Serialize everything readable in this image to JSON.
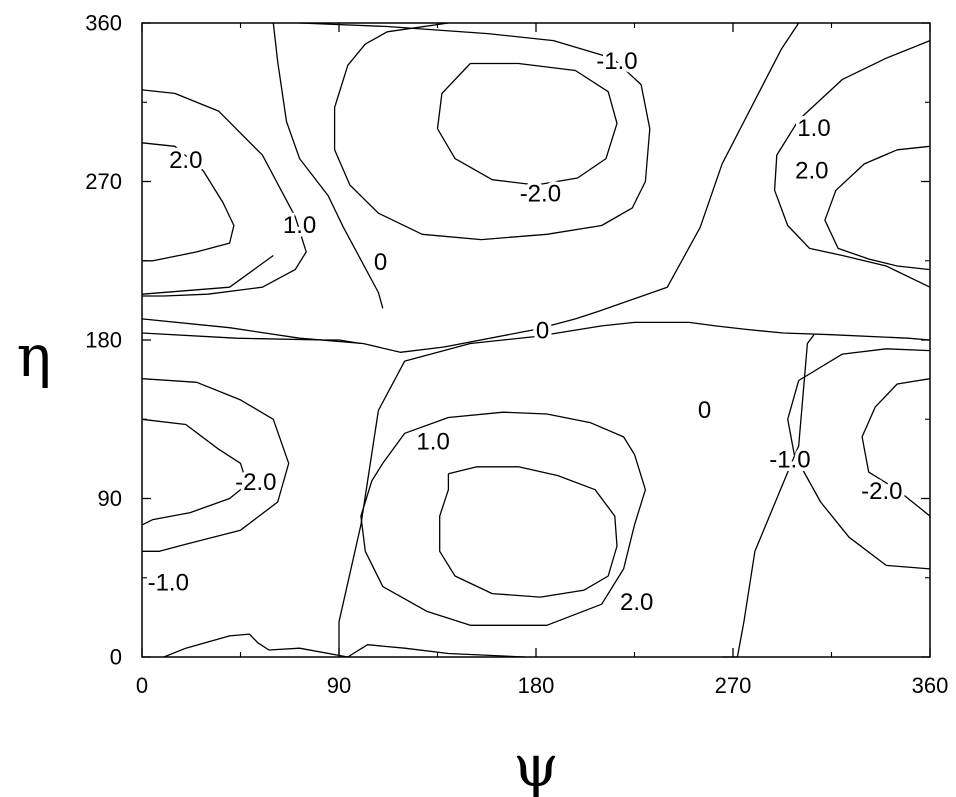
{
  "chart_data": {
    "type": "contour",
    "title": "",
    "xlabel": "ψ",
    "ylabel": "η",
    "xlim": [
      0,
      360
    ],
    "ylim": [
      0,
      360
    ],
    "xticks": [
      0,
      90,
      180,
      270,
      360
    ],
    "yticks": [
      0,
      90,
      180,
      270,
      360
    ],
    "grid": false,
    "legend": "none",
    "line_color": "#000000",
    "contours": [
      {
        "level": "-1.0",
        "points": [
          [
            72,
            360
          ],
          [
            112,
            358
          ],
          [
            158,
            354
          ],
          [
            188,
            350
          ],
          [
            215,
            340
          ],
          [
            228,
            325
          ],
          [
            232,
            300
          ],
          [
            230,
            270
          ],
          [
            224,
            255
          ],
          [
            210,
            245
          ],
          [
            185,
            240
          ],
          [
            155,
            237
          ],
          [
            128,
            240
          ],
          [
            108,
            252
          ],
          [
            95,
            268
          ],
          [
            88,
            288
          ],
          [
            88,
            312
          ],
          [
            94,
            336
          ],
          [
            102,
            348
          ],
          [
            112,
            355
          ],
          [
            140,
            360
          ]
        ]
      },
      {
        "level": "-2.0",
        "points": [
          [
            150,
            337
          ],
          [
            172,
            337
          ],
          [
            198,
            333
          ],
          [
            213,
            321
          ],
          [
            217,
            303
          ],
          [
            212,
            283
          ],
          [
            199,
            272
          ],
          [
            180,
            268
          ],
          [
            160,
            271
          ],
          [
            143,
            283
          ],
          [
            135,
            300
          ],
          [
            137,
            320
          ],
          [
            150,
            337
          ]
        ]
      },
      {
        "level": "0",
        "points": [
          [
            60,
            360
          ],
          [
            62,
            338
          ],
          [
            66,
            304
          ],
          [
            72,
            283
          ],
          [
            85,
            262
          ],
          [
            92,
            244
          ],
          [
            108,
            207
          ],
          [
            110,
            198
          ]
        ]
      },
      {
        "level": "0",
        "points": [
          [
            0,
            192
          ],
          [
            40,
            187
          ],
          [
            72,
            181
          ],
          [
            101,
            178
          ],
          [
            118,
            173
          ],
          [
            138,
            176
          ],
          [
            180,
            186
          ],
          [
            198,
            192
          ],
          [
            208,
            196
          ],
          [
            240,
            210
          ],
          [
            255,
            244
          ],
          [
            265,
            280
          ],
          [
            292,
            345
          ],
          [
            300,
            360
          ]
        ]
      },
      {
        "level": "0",
        "points": [
          [
            0,
            184
          ],
          [
            43,
            181
          ],
          [
            83,
            180
          ],
          [
            90,
            180
          ],
          [
            100,
            178
          ]
        ]
      },
      {
        "level": "0",
        "points": [
          [
            0,
            206
          ],
          [
            40,
            210
          ],
          [
            60,
            228
          ]
        ]
      },
      {
        "level": "0",
        "points": [
          [
            90,
            0
          ],
          [
            90,
            20
          ],
          [
            100,
            75
          ],
          [
            108,
            140
          ],
          [
            120,
            168
          ],
          [
            150,
            178
          ],
          [
            180,
            182
          ],
          [
            210,
            188
          ],
          [
            225,
            190
          ],
          [
            250,
            190
          ]
        ]
      },
      {
        "level": "0",
        "points": [
          [
            250,
            190
          ],
          [
            262,
            188
          ],
          [
            276,
            186
          ],
          [
            293,
            184
          ],
          [
            315,
            183
          ],
          [
            350,
            181
          ],
          [
            360,
            180
          ]
        ]
      },
      {
        "level": "1.0",
        "points": [
          [
            0,
            322
          ],
          [
            15,
            320
          ],
          [
            35,
            310
          ],
          [
            55,
            285
          ],
          [
            70,
            250
          ],
          [
            75,
            230
          ],
          [
            70,
            220
          ],
          [
            55,
            210
          ],
          [
            30,
            206
          ],
          [
            10,
            205
          ],
          [
            0,
            205
          ]
        ]
      },
      {
        "level": "2.0",
        "points": [
          [
            0,
            292
          ],
          [
            15,
            290
          ],
          [
            28,
            276
          ],
          [
            37,
            258
          ],
          [
            42,
            245
          ],
          [
            40,
            235
          ],
          [
            25,
            230
          ],
          [
            5,
            225
          ],
          [
            0,
            225
          ]
        ]
      },
      {
        "level": "1.0",
        "points": [
          [
            360,
            350
          ],
          [
            340,
            340
          ],
          [
            320,
            328
          ],
          [
            300,
            305
          ],
          [
            290,
            285
          ],
          [
            289,
            265
          ],
          [
            295,
            245
          ],
          [
            305,
            232
          ],
          [
            320,
            228
          ],
          [
            340,
            222
          ],
          [
            360,
            210
          ]
        ]
      },
      {
        "level": "2.0",
        "points": [
          [
            360,
            290
          ],
          [
            345,
            288
          ],
          [
            330,
            280
          ],
          [
            317,
            265
          ],
          [
            312,
            248
          ],
          [
            318,
            232
          ],
          [
            332,
            226
          ],
          [
            345,
            222
          ],
          [
            360,
            220
          ]
        ]
      },
      {
        "level": "-1.0",
        "points": [
          [
            0,
            158
          ],
          [
            25,
            156
          ],
          [
            45,
            146
          ],
          [
            60,
            135
          ],
          [
            67,
            110
          ],
          [
            62,
            88
          ],
          [
            45,
            72
          ],
          [
            20,
            64
          ],
          [
            8,
            60
          ],
          [
            0,
            60
          ]
        ]
      },
      {
        "level": "-2.0",
        "points": [
          [
            0,
            135
          ],
          [
            20,
            132
          ],
          [
            35,
            118
          ],
          [
            45,
            110
          ],
          [
            48,
            98
          ],
          [
            40,
            90
          ],
          [
            22,
            82
          ],
          [
            5,
            78
          ],
          [
            0,
            75
          ]
        ]
      },
      {
        "level": "-1.0",
        "points": [
          [
            360,
            174
          ],
          [
            340,
            175
          ],
          [
            320,
            172
          ],
          [
            300,
            157
          ],
          [
            295,
            135
          ],
          [
            298,
            115
          ],
          [
            310,
            88
          ],
          [
            323,
            68
          ],
          [
            340,
            52
          ],
          [
            360,
            50
          ]
        ]
      },
      {
        "level": "-2.0",
        "points": [
          [
            360,
            158
          ],
          [
            345,
            155
          ],
          [
            335,
            142
          ],
          [
            329,
            125
          ],
          [
            332,
            105
          ],
          [
            345,
            95
          ],
          [
            360,
            80
          ]
        ]
      },
      {
        "level": "1.0",
        "points": [
          [
            110,
            110
          ],
          [
            120,
            127
          ],
          [
            140,
            136
          ],
          [
            165,
            139
          ],
          [
            185,
            138
          ],
          [
            205,
            133
          ],
          [
            220,
            125
          ],
          [
            225,
            115
          ],
          [
            230,
            95
          ],
          [
            225,
            75
          ],
          [
            220,
            50
          ],
          [
            210,
            30
          ],
          [
            185,
            18
          ],
          [
            150,
            18
          ],
          [
            130,
            26
          ],
          [
            110,
            40
          ],
          [
            102,
            60
          ],
          [
            100,
            80
          ],
          [
            105,
            100
          ],
          [
            110,
            110
          ]
        ]
      },
      {
        "level": "2.0",
        "points": [
          [
            140,
            104
          ],
          [
            153,
            108
          ],
          [
            172,
            108
          ],
          [
            190,
            103
          ],
          [
            207,
            95
          ],
          [
            216,
            80
          ],
          [
            217,
            63
          ],
          [
            213,
            46
          ],
          [
            202,
            38
          ],
          [
            182,
            34
          ],
          [
            160,
            36
          ],
          [
            143,
            46
          ],
          [
            136,
            60
          ],
          [
            136,
            80
          ],
          [
            140,
            95
          ],
          [
            140,
            104
          ]
        ]
      },
      {
        "level": "0",
        "points": [
          [
            10,
            0
          ],
          [
            20,
            5
          ],
          [
            40,
            12
          ],
          [
            49,
            13
          ],
          [
            53,
            8
          ],
          [
            58,
            4
          ],
          [
            72,
            5
          ],
          [
            94,
            0
          ],
          [
            103,
            7
          ],
          [
            120,
            5
          ],
          [
            140,
            2
          ],
          [
            175,
            0
          ]
        ]
      },
      {
        "level": "0",
        "points": [
          [
            265,
            0
          ],
          [
            272,
            0
          ],
          [
            275,
            20
          ],
          [
            280,
            60
          ],
          [
            300,
            120
          ],
          [
            304,
            178
          ],
          [
            307,
            183
          ]
        ]
      }
    ],
    "contour_labels": [
      {
        "text": "-1.0",
        "x": 217,
        "y": 338
      },
      {
        "text": "-2.0",
        "x": 182,
        "y": 263
      },
      {
        "text": "0",
        "x": 109,
        "y": 224
      },
      {
        "text": "1.0",
        "x": 72,
        "y": 245
      },
      {
        "text": "2.0",
        "x": 20,
        "y": 282
      },
      {
        "text": "1.0",
        "x": 307,
        "y": 300
      },
      {
        "text": "2.0",
        "x": 306,
        "y": 276
      },
      {
        "text": "0",
        "x": 183,
        "y": 185
      },
      {
        "text": "0",
        "x": 257,
        "y": 140
      },
      {
        "text": "1.0",
        "x": 133,
        "y": 122
      },
      {
        "text": "-1.0",
        "x": 296,
        "y": 112
      },
      {
        "text": "-2.0",
        "x": 338,
        "y": 94
      },
      {
        "text": "-2.0",
        "x": 52,
        "y": 99
      },
      {
        "text": "-1.0",
        "x": 12,
        "y": 42
      },
      {
        "text": "2.0",
        "x": 226,
        "y": 31
      }
    ]
  }
}
